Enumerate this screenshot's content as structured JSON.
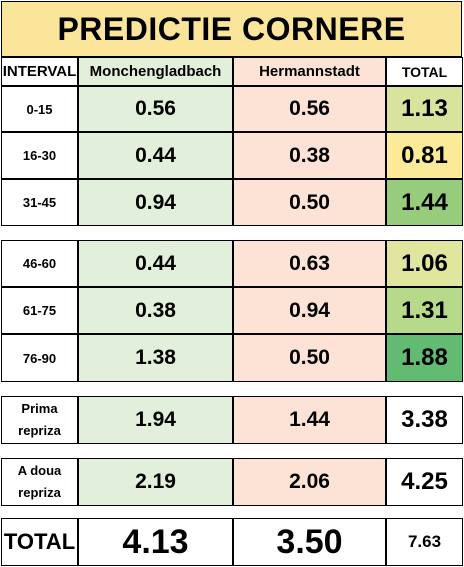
{
  "title": "PREDICTIE CORNERE",
  "header": {
    "interval": "INTERVAL",
    "team1": "Monchengladbach",
    "team2": "Hermannstadt",
    "total": "TOTAL"
  },
  "rows": [
    {
      "interval": "0-15",
      "team1": "0.56",
      "team2": "0.56",
      "total": "1.13",
      "total_color": "#d8e49e"
    },
    {
      "interval": "16-30",
      "team1": "0.44",
      "team2": "0.38",
      "total": "0.81",
      "total_color": "#fbeb99"
    },
    {
      "interval": "31-45",
      "team1": "0.94",
      "team2": "0.50",
      "total": "1.44",
      "total_color": "#97cc7d"
    },
    {
      "interval": "46-60",
      "team1": "0.44",
      "team2": "0.63",
      "total": "1.06",
      "total_color": "#e0e69d"
    },
    {
      "interval": "61-75",
      "team1": "0.38",
      "team2": "0.94",
      "total": "1.31",
      "total_color": "#b6d98a"
    },
    {
      "interval": "76-90",
      "team1": "1.38",
      "team2": "0.50",
      "total": "1.88",
      "total_color": "#63ba72"
    }
  ],
  "halves": [
    {
      "label_line1": "Prima",
      "label_line2": "repriza",
      "team1": "1.94",
      "team2": "1.44",
      "total": "3.38"
    },
    {
      "label_line1": "A doua",
      "label_line2": "repriza",
      "team1": "2.19",
      "team2": "2.06",
      "total": "4.25"
    }
  ],
  "grand_total": {
    "label": "TOTAL",
    "team1": "4.13",
    "team2": "3.50",
    "total": "7.63"
  }
}
